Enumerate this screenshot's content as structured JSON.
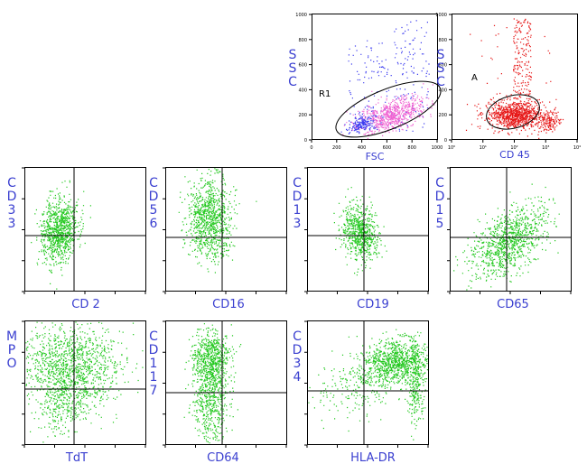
{
  "colors": {
    "label": "#3a3fd0",
    "green": "#22c81e",
    "blue": "#3c3cf0",
    "pink": "#f064d2",
    "red": "#e61414",
    "axis": "#000000"
  },
  "chart_data": [
    {
      "id": "fsc-ssc",
      "type": "scatter",
      "xlabel": "FSC",
      "ylabel": "SSC",
      "gate_label": "R1",
      "xticks": [
        "0",
        "200",
        "400",
        "600",
        "800",
        "1000"
      ],
      "yticks": [
        "0",
        "200",
        "400",
        "600",
        "800",
        "1000"
      ],
      "xlim": [
        0,
        1000
      ],
      "ylim": [
        0,
        1000
      ],
      "series": [
        {
          "color": "#3c3cf0",
          "cluster": {
            "x": 430,
            "y": 150
          }
        },
        {
          "color": "#f064d2",
          "cluster": {
            "x": 600,
            "y": 200
          }
        }
      ]
    },
    {
      "id": "cd45-ssc",
      "type": "scatter",
      "xlabel": "CD 45",
      "ylabel": "SSC",
      "gate_label": "A",
      "xticks": [
        "10⁰",
        "10¹",
        "10²",
        "10³",
        "10⁴"
      ],
      "yticks": [
        "0",
        "200",
        "400",
        "600",
        "800",
        "1000"
      ],
      "xscale": "log",
      "xlim": [
        1,
        10000
      ],
      "ylim": [
        0,
        1000
      ],
      "series": [
        {
          "color": "#e61414",
          "cluster": {
            "x": 120,
            "y": 140
          }
        }
      ]
    },
    {
      "id": "cd2-cd33",
      "type": "scatter",
      "xlabel": "CD 2",
      "ylabel": "CD33",
      "xscale": "log",
      "yscale": "log",
      "xlim": [
        1,
        10000
      ],
      "ylim": [
        1,
        10000
      ],
      "quadrants": true,
      "series": [
        {
          "color": "#22c81e"
        }
      ]
    },
    {
      "id": "cd16-cd56",
      "type": "scatter",
      "xlabel": "CD16",
      "ylabel": "CD56",
      "xscale": "log",
      "yscale": "log",
      "xlim": [
        1,
        10000
      ],
      "ylim": [
        1,
        10000
      ],
      "quadrants": true,
      "series": [
        {
          "color": "#22c81e"
        }
      ]
    },
    {
      "id": "cd19-cd13",
      "type": "scatter",
      "xlabel": "CD19",
      "ylabel": "CD13",
      "xscale": "log",
      "yscale": "log",
      "xlim": [
        1,
        10000
      ],
      "ylim": [
        1,
        10000
      ],
      "quadrants": true,
      "series": [
        {
          "color": "#22c81e"
        }
      ]
    },
    {
      "id": "cd65-cd15",
      "type": "scatter",
      "xlabel": "CD65",
      "ylabel": "CD15",
      "xscale": "log",
      "yscale": "log",
      "xlim": [
        1,
        10000
      ],
      "ylim": [
        1,
        10000
      ],
      "quadrants": true,
      "series": [
        {
          "color": "#22c81e"
        }
      ]
    },
    {
      "id": "tdt-mpo",
      "type": "scatter",
      "xlabel": "TdT",
      "ylabel": "MPO",
      "xscale": "log",
      "yscale": "log",
      "xlim": [
        1,
        10000
      ],
      "ylim": [
        1,
        10000
      ],
      "quadrants": true,
      "series": [
        {
          "color": "#22c81e"
        }
      ]
    },
    {
      "id": "cd64-cd117",
      "type": "scatter",
      "xlabel": "CD64",
      "ylabel": "CD117",
      "xscale": "log",
      "yscale": "log",
      "xlim": [
        1,
        10000
      ],
      "ylim": [
        1,
        10000
      ],
      "quadrants": true,
      "series": [
        {
          "color": "#22c81e"
        }
      ]
    },
    {
      "id": "hladr-cd34",
      "type": "scatter",
      "xlabel": "HLA-DR",
      "ylabel": "CD34",
      "xscale": "log",
      "yscale": "log",
      "xlim": [
        1,
        10000
      ],
      "ylim": [
        1,
        10000
      ],
      "quadrants": true,
      "series": [
        {
          "color": "#22c81e"
        }
      ]
    }
  ]
}
